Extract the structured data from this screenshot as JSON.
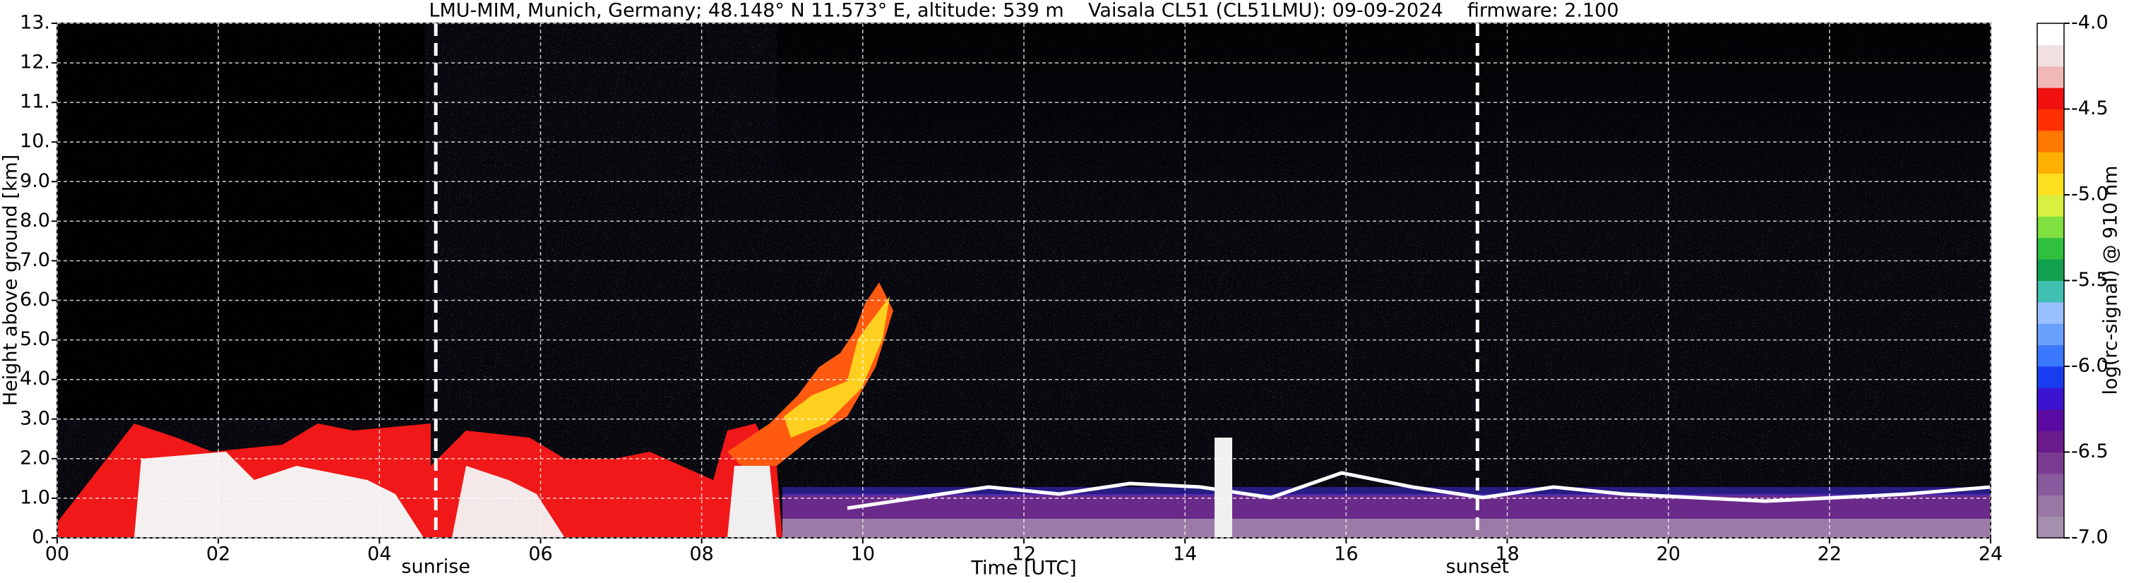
{
  "chart_data": {
    "type": "heatmap",
    "title": "LMU-MIM, Munich, Germany; 48.148° N 11.573° E, altitude: 539 m    Vaisala CL51 (CL51LMU): 09-09-2024    firmware: 2.100",
    "x_label": "Time [UTC]",
    "y_label": "Height above ground [km]",
    "colorbar_label": "log(rc-signal) @ 910 nm",
    "xlim": [
      0,
      24
    ],
    "xticks": [
      {
        "value": 0,
        "label": "00"
      },
      {
        "value": 2,
        "label": "02"
      },
      {
        "value": 4,
        "label": "04"
      },
      {
        "value": 6,
        "label": "06"
      },
      {
        "value": 8,
        "label": "08"
      },
      {
        "value": 10,
        "label": "10"
      },
      {
        "value": 12,
        "label": "12"
      },
      {
        "value": 14,
        "label": "14"
      },
      {
        "value": 16,
        "label": "16"
      },
      {
        "value": 18,
        "label": "18"
      },
      {
        "value": 20,
        "label": "20"
      },
      {
        "value": 22,
        "label": "22"
      },
      {
        "value": 24,
        "label": "24"
      }
    ],
    "ylim": [
      0,
      13
    ],
    "yticks": [
      {
        "value": 0,
        "label": "0."
      },
      {
        "value": 1,
        "label": "1.0"
      },
      {
        "value": 2,
        "label": "2.0"
      },
      {
        "value": 3,
        "label": "3.0"
      },
      {
        "value": 4,
        "label": "4.0"
      },
      {
        "value": 5,
        "label": "5.0"
      },
      {
        "value": 6,
        "label": "6.0"
      },
      {
        "value": 7,
        "label": "7.0"
      },
      {
        "value": 8,
        "label": "8.0"
      },
      {
        "value": 9,
        "label": "9.0"
      },
      {
        "value": 10,
        "label": "10."
      },
      {
        "value": 11,
        "label": "11."
      },
      {
        "value": 12,
        "label": "12."
      },
      {
        "value": 13,
        "label": "13."
      }
    ],
    "clim": [
      -7,
      -4
    ],
    "cticks": [
      {
        "value": -7,
        "label": "-7.0"
      },
      {
        "value": -6.5,
        "label": "-6.5"
      },
      {
        "value": -6,
        "label": "-6.0"
      },
      {
        "value": -5.5,
        "label": "-5.5"
      },
      {
        "value": -5,
        "label": "-5.0"
      },
      {
        "value": -4.5,
        "label": "-4.5"
      },
      {
        "value": -4,
        "label": "-4.0"
      }
    ],
    "colormap": [
      "#a58fae",
      "#9a78a6",
      "#8a5a9e",
      "#7a3a92",
      "#6a1a8a",
      "#5a0aa0",
      "#3a14d0",
      "#1a3cf0",
      "#3a78ff",
      "#6aa0ff",
      "#9ac0ff",
      "#40c0b0",
      "#10a050",
      "#30c040",
      "#80e040",
      "#d8f040",
      "#ffe020",
      "#ffb000",
      "#ff7800",
      "#ff3000",
      "#f01010",
      "#f0b8b8",
      "#f0e0e0",
      "#ffffff"
    ],
    "grid": true,
    "annotations": [
      {
        "text": "sunrise",
        "x": 4.7
      },
      {
        "text": "sunset",
        "x": 17.63
      }
    ]
  }
}
